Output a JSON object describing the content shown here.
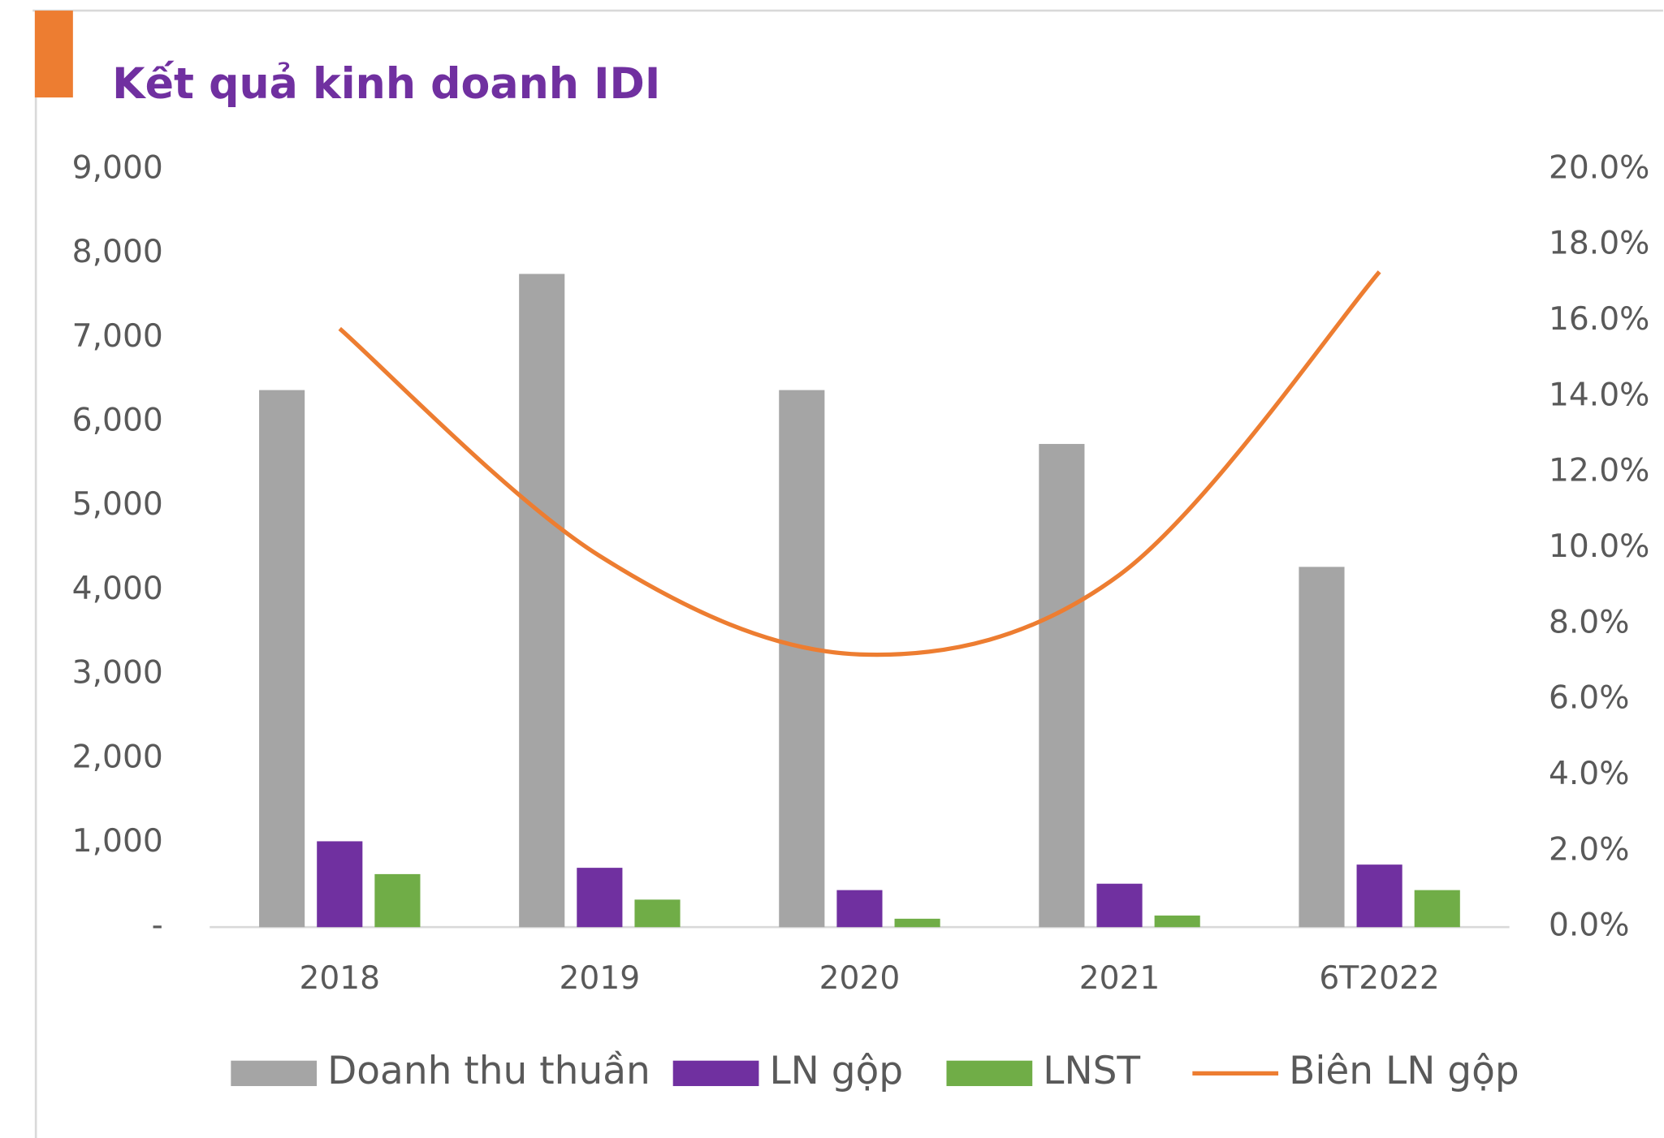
{
  "chart_data": {
    "type": "bar_line",
    "title": "Kết quả kinh doanh IDI",
    "categories": [
      "2018",
      "2019",
      "2020",
      "2021",
      "6T2022"
    ],
    "series": [
      {
        "name": "Doanh thu thuần",
        "color": "#a5a5a5",
        "type": "bar",
        "values": [
          6380,
          7760,
          6380,
          5740,
          4280
        ]
      },
      {
        "name": "LN gộp",
        "color": "#7030a0",
        "type": "bar",
        "values": [
          1020,
          705,
          440,
          516,
          743
        ]
      },
      {
        "name": "LNST",
        "color": "#70ad47",
        "type": "bar",
        "values": [
          630,
          327,
          100,
          138,
          440
        ]
      },
      {
        "name": "Biên LN gộp",
        "color": "#ed7d31",
        "type": "line",
        "axis": "y2",
        "values": [
          15.8,
          9.8,
          7.2,
          9.3,
          17.3
        ]
      }
    ],
    "ylim": [
      0,
      9000
    ],
    "yticks": [
      {
        "value": 0,
        "label": "-"
      },
      {
        "value": 1000,
        "label": "1,000"
      },
      {
        "value": 2000,
        "label": "2,000"
      },
      {
        "value": 3000,
        "label": "3,000"
      },
      {
        "value": 4000,
        "label": "4,000"
      },
      {
        "value": 5000,
        "label": "5,000"
      },
      {
        "value": 6000,
        "label": "6,000"
      },
      {
        "value": 7000,
        "label": "7,000"
      },
      {
        "value": 8000,
        "label": "8,000"
      },
      {
        "value": 9000,
        "label": "9,000"
      }
    ],
    "y2lim": [
      0,
      20
    ],
    "y2ticks": [
      {
        "value": 0,
        "label": "0.0%"
      },
      {
        "value": 2,
        "label": "2.0%"
      },
      {
        "value": 4,
        "label": "4.0%"
      },
      {
        "value": 6,
        "label": "6.0%"
      },
      {
        "value": 8,
        "label": "8.0%"
      },
      {
        "value": 10,
        "label": "10.0%"
      },
      {
        "value": 12,
        "label": "12.0%"
      },
      {
        "value": 14,
        "label": "14.0%"
      },
      {
        "value": 16,
        "label": "16.0%"
      },
      {
        "value": 18,
        "label": "18.0%"
      },
      {
        "value": 20,
        "label": "20.0%"
      }
    ],
    "legend": "bottom",
    "grid": false
  }
}
